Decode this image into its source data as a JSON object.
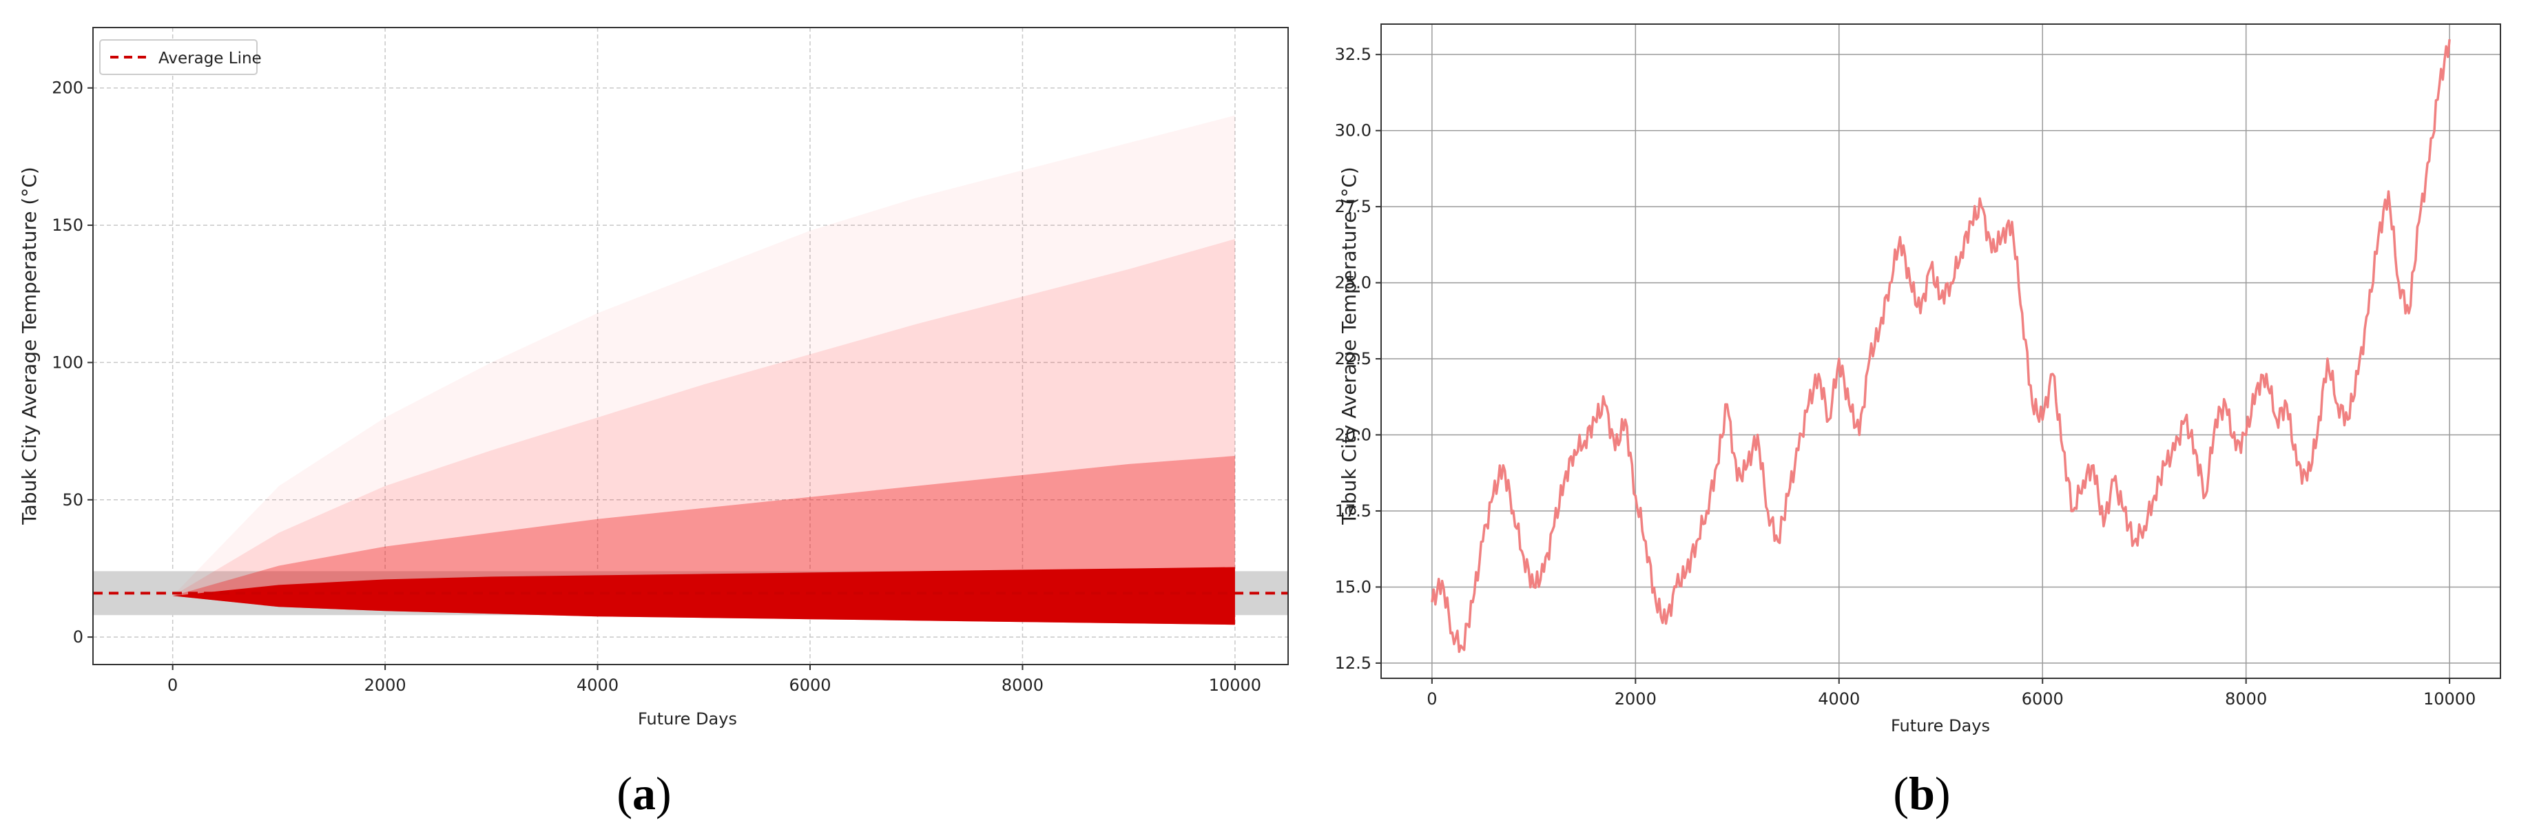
{
  "figure": {
    "captions": [
      "(a)",
      "(b)"
    ],
    "caption_letters": [
      "a",
      "b"
    ]
  },
  "chart_data": [
    {
      "type": "line",
      "panel": "a",
      "xlabel": "Future Days",
      "ylabel": "Tabuk City Average Temperature (°C)",
      "xlim": [
        -750,
        10500
      ],
      "ylim": [
        -10,
        222
      ],
      "xticks": [
        0,
        2000,
        4000,
        6000,
        8000,
        10000
      ],
      "yticks": [
        0,
        50,
        100,
        150,
        200
      ],
      "grid": true,
      "legend": {
        "position": "top-left",
        "entries": [
          "Average Line"
        ]
      },
      "series": [
        {
          "name": "Average Line",
          "style": "dashed",
          "color": "#cc0000",
          "x": [
            -750,
            10500
          ],
          "y": [
            16,
            16
          ]
        }
      ],
      "simulation_band": {
        "color": "#dd0000",
        "start_value": 15,
        "x": [
          0,
          1000,
          2000,
          3000,
          4000,
          5000,
          6000,
          7000,
          8000,
          9000,
          10000
        ],
        "dense_low": [
          15,
          11,
          9.5,
          8.5,
          7.5,
          7,
          6.5,
          6,
          5.5,
          5,
          4.5
        ],
        "dense_high": [
          15,
          19,
          21,
          22,
          22.5,
          23,
          23.5,
          24,
          24.5,
          25,
          25.5
        ],
        "mid_high": [
          15,
          26,
          33,
          38,
          43,
          47,
          51,
          55,
          59,
          63,
          66
        ],
        "faint_high": [
          15,
          38,
          55,
          68,
          80,
          92,
          103,
          114,
          124,
          134,
          145
        ],
        "max_high": [
          15,
          55,
          80,
          100,
          118,
          133,
          148,
          160,
          170,
          180,
          190
        ]
      },
      "shaded_band": {
        "y": [
          8,
          24
        ],
        "color": "#d3d3d3"
      }
    },
    {
      "type": "line",
      "panel": "b",
      "xlabel": "Future Days",
      "ylabel": "Tabuk City Average Temperature (°C)",
      "xlim": [
        -500,
        10500
      ],
      "ylim": [
        12.0,
        33.5
      ],
      "xticks": [
        0,
        2000,
        4000,
        6000,
        8000,
        10000
      ],
      "yticks": [
        12.5,
        15.0,
        17.5,
        20.0,
        22.5,
        25.0,
        27.5,
        30.0,
        32.5
      ],
      "ytick_labels": [
        "12.5",
        "15.0",
        "17.5",
        "20.0",
        "22.5",
        "25.0",
        "27.5",
        "30.0",
        "32.5"
      ],
      "grid": true,
      "series": [
        {
          "color": "#f08080",
          "x": [
            0,
            100,
            200,
            300,
            400,
            500,
            600,
            700,
            800,
            900,
            1000,
            1100,
            1200,
            1300,
            1400,
            1500,
            1600,
            1700,
            1800,
            1900,
            2000,
            2100,
            2200,
            2300,
            2400,
            2500,
            2600,
            2700,
            2800,
            2900,
            3000,
            3100,
            3200,
            3300,
            3400,
            3500,
            3600,
            3700,
            3800,
            3900,
            4000,
            4100,
            4200,
            4300,
            4400,
            4500,
            4600,
            4700,
            4800,
            4900,
            5000,
            5100,
            5200,
            5300,
            5400,
            5500,
            5600,
            5700,
            5800,
            5900,
            6000,
            6100,
            6200,
            6300,
            6400,
            6500,
            6600,
            6700,
            6800,
            6900,
            7000,
            7100,
            7200,
            7300,
            7400,
            7500,
            7600,
            7700,
            7800,
            7900,
            8000,
            8100,
            8200,
            8300,
            8400,
            8500,
            8600,
            8700,
            8800,
            8900,
            9000,
            9100,
            9200,
            9300,
            9400,
            9500,
            9600,
            9700,
            9800,
            9900,
            10000
          ],
          "y": [
            14.5,
            15.2,
            13.5,
            13.0,
            14.5,
            16.5,
            18.0,
            19.0,
            17.5,
            16.0,
            15.0,
            15.5,
            17.0,
            18.5,
            19.5,
            19.8,
            20.5,
            21.0,
            19.5,
            20.5,
            18.0,
            16.5,
            14.5,
            13.8,
            15.0,
            15.5,
            16.5,
            17.5,
            19.0,
            21.0,
            18.5,
            19.0,
            20.0,
            17.5,
            16.5,
            18.0,
            19.5,
            21.0,
            22.0,
            20.5,
            22.5,
            21.0,
            20.0,
            22.5,
            23.5,
            25.0,
            26.5,
            25.0,
            24.0,
            25.5,
            24.5,
            25.0,
            26.0,
            27.0,
            27.5,
            26.0,
            26.5,
            27.0,
            24.0,
            21.0,
            20.5,
            22.0,
            19.5,
            17.5,
            18.5,
            19.0,
            17.0,
            18.5,
            17.5,
            16.5,
            17.0,
            18.0,
            19.0,
            19.5,
            20.5,
            19.5,
            18.0,
            20.5,
            21.0,
            19.5,
            20.0,
            21.5,
            22.0,
            20.5,
            21.0,
            19.0,
            18.5,
            20.0,
            22.5,
            21.0,
            20.5,
            22.0,
            24.0,
            26.5,
            28.0,
            25.0,
            24.0,
            27.0,
            29.0,
            31.5,
            33.0
          ]
        }
      ]
    }
  ]
}
